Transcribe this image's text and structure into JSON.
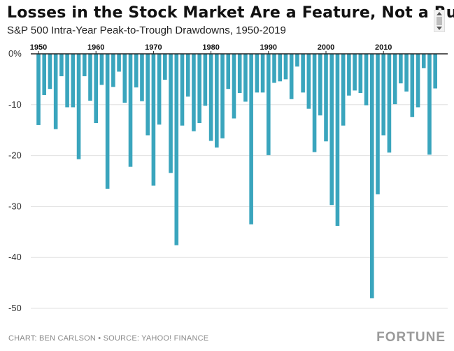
{
  "header": {
    "title": "Losses in the Stock Market Are a Feature, Not a Bug",
    "subtitle": "S&P 500 Intra-Year Peak-to-Trough Drawdowns, 1950-2019"
  },
  "footer": {
    "credit": "CHART: BEN CARLSON • SOURCE: YAHOO! FINANCE",
    "brand": "FORTUNE"
  },
  "colors": {
    "bar": "#3aa5bd",
    "axis": "#222222",
    "grid": "#e0e0e0"
  },
  "chart_data": {
    "type": "bar",
    "title": "Losses in the Stock Market Are a Feature, Not a Bug",
    "subtitle": "S&P 500 Intra-Year Peak-to-Trough Drawdowns, 1950-2019",
    "xlabel": "",
    "ylabel": "",
    "x_tick_labels": [
      "1950",
      "1960",
      "1970",
      "1980",
      "1990",
      "2000",
      "2010"
    ],
    "y_tick_labels": [
      "0%",
      "-10",
      "-20",
      "-30",
      "-40",
      "-50"
    ],
    "y_ticks": [
      0,
      -10,
      -20,
      -30,
      -40,
      -50
    ],
    "ylim": [
      -51,
      0
    ],
    "x_axis_position": "top",
    "legend": "none",
    "series": [
      {
        "years": [
          1950,
          1951,
          1952,
          1953,
          1954,
          1955,
          1956,
          1957,
          1958,
          1959,
          1960,
          1961,
          1962,
          1963,
          1964,
          1965,
          1966,
          1967,
          1968,
          1969,
          1970,
          1971,
          1972,
          1973,
          1974,
          1975,
          1976,
          1977,
          1978,
          1979,
          1980,
          1981,
          1982,
          1983,
          1984,
          1985,
          1986,
          1987,
          1988,
          1989,
          1990,
          1991,
          1992,
          1993,
          1994,
          1995,
          1996,
          1997,
          1998,
          1999,
          2000,
          2001,
          2002,
          2003,
          2004,
          2005,
          2006,
          2007,
          2008,
          2009,
          2010,
          2011,
          2012,
          2013,
          2014,
          2015,
          2016,
          2017,
          2018,
          2019
        ],
        "values": [
          -14.0,
          -8.1,
          -6.9,
          -14.8,
          -4.4,
          -10.5,
          -10.5,
          -20.7,
          -4.4,
          -9.2,
          -13.6,
          -6.1,
          -26.5,
          -6.5,
          -3.5,
          -9.6,
          -22.2,
          -6.6,
          -9.3,
          -16.0,
          -25.9,
          -13.9,
          -5.1,
          -23.4,
          -37.6,
          -14.1,
          -8.4,
          -15.2,
          -13.6,
          -10.2,
          -17.1,
          -18.4,
          -16.6,
          -6.9,
          -12.7,
          -7.7,
          -9.4,
          -33.5,
          -7.6,
          -7.6,
          -19.9,
          -5.7,
          -5.4,
          -5.0,
          -8.9,
          -2.5,
          -7.6,
          -10.8,
          -19.3,
          -12.1,
          -17.2,
          -29.7,
          -33.8,
          -14.1,
          -8.2,
          -7.2,
          -7.7,
          -10.1,
          -48.0,
          -27.6,
          -16.0,
          -19.4,
          -9.9,
          -5.8,
          -7.4,
          -12.4,
          -10.5,
          -2.8,
          -19.8,
          -6.8
        ]
      }
    ]
  }
}
